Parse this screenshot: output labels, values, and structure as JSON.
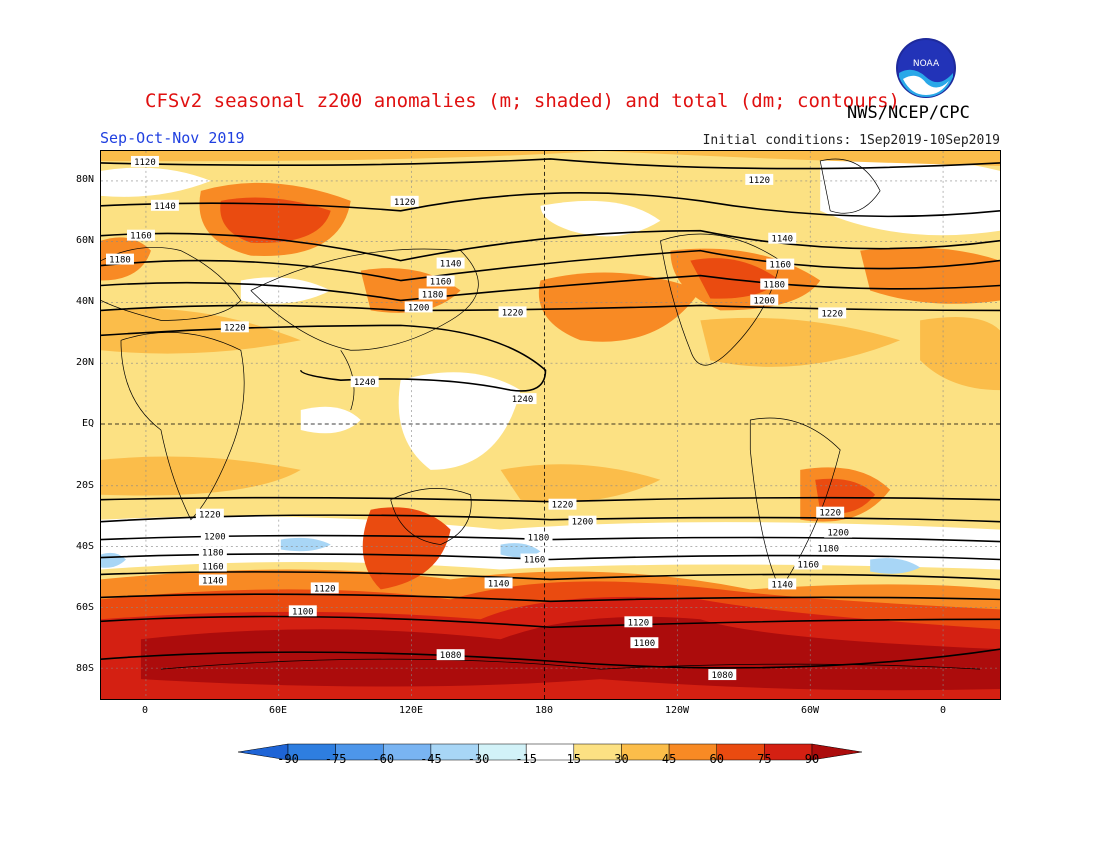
{
  "title": "CFSv2 seasonal z200 anomalies (m; shaded) and total (dm; contours)",
  "agency": "NWS/NCEP/CPC",
  "season": "Sep-Oct-Nov 2019",
  "initial_conditions": "Initial conditions: 1Sep2019-10Sep2019",
  "logo_text": "NOAA",
  "lat_labels": [
    "80N",
    "60N",
    "40N",
    "20N",
    "EQ",
    "20S",
    "40S",
    "60S",
    "80S"
  ],
  "lon_labels": [
    "0",
    "60E",
    "120E",
    "180",
    "120W",
    "60W",
    "0"
  ],
  "colorbar": {
    "labels": [
      "-90",
      "-75",
      "-60",
      "-45",
      "-30",
      "-15",
      "15",
      "30",
      "45",
      "60",
      "75",
      "90"
    ],
    "colors": [
      "#1e64d6",
      "#2e7ee0",
      "#4d96ea",
      "#79b4f2",
      "#a8d6f6",
      "#d2f2f8",
      "#ffffff",
      "#fce183",
      "#fbbd4a",
      "#f88a24",
      "#ea4b10",
      "#d42012",
      "#ac0c0c"
    ]
  },
  "contour_labels": {
    "north": [
      "1120",
      "1140",
      "1160",
      "1180",
      "1200",
      "1220",
      "1240"
    ],
    "south": [
      "1220",
      "1200",
      "1180",
      "1160",
      "1140",
      "1120",
      "1100",
      "1080"
    ]
  },
  "colors": {
    "title": "#e01010",
    "season": "#2040e0"
  }
}
